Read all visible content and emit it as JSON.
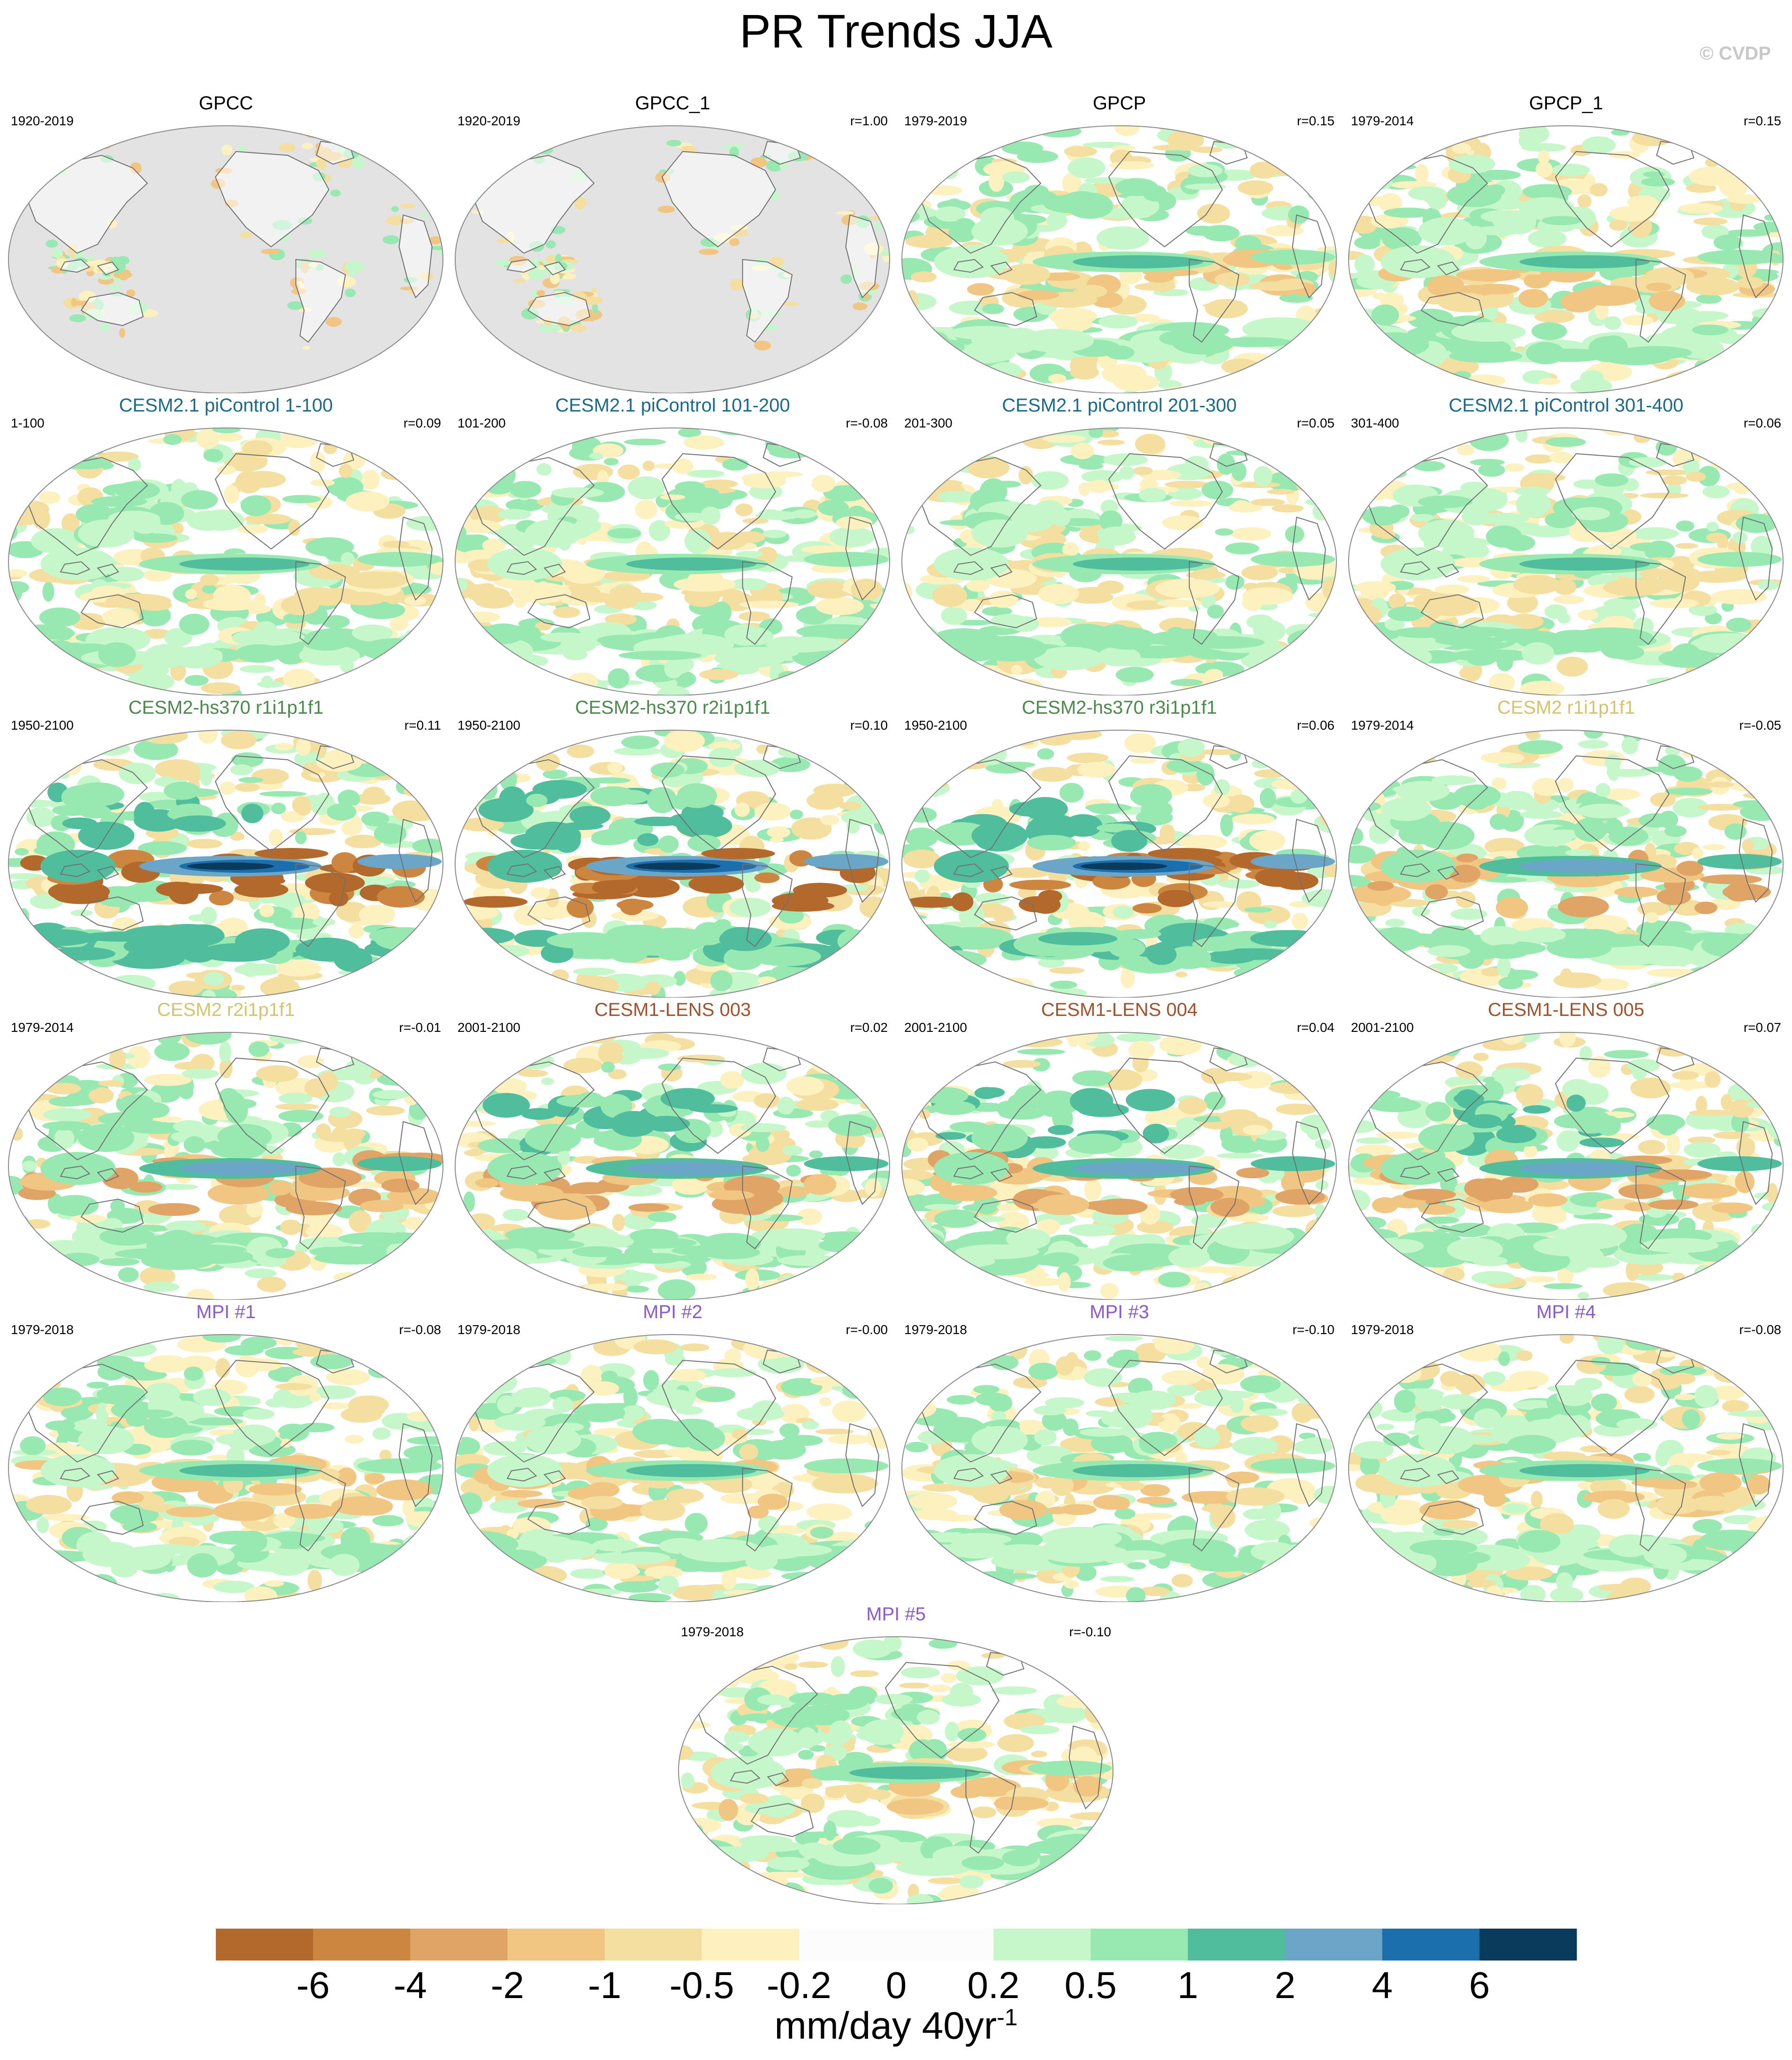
{
  "title": "PR Trends JJA",
  "copyright": "© CVDP",
  "colors": {
    "levels": [
      "#b4692c",
      "#cc8640",
      "#e0a466",
      "#f0c682",
      "#f4dfa0",
      "#fcf1bf",
      "#fcfcfc",
      "#fcfcfc",
      "#c6f7cb",
      "#98e8b2",
      "#50bd9c",
      "#6ba6c9",
      "#1b6fac",
      "#0a3b5c"
    ],
    "land_mask": "#e3e3e3",
    "title_colors": {
      "obs": "#000000",
      "picontrol": "#1a6a8a",
      "hs370": "#4c8a4c",
      "cesm2": "#d4c46c",
      "lens": "#a0522d",
      "mpi": "#8a5ad1"
    }
  },
  "panels": [
    {
      "title": "GPCC",
      "period": "1920-2019",
      "r": "",
      "group": "obs",
      "masked": true
    },
    {
      "title": "GPCC_1",
      "period": "1920-2019",
      "r": "r=1.00",
      "group": "obs",
      "masked": true
    },
    {
      "title": "GPCP",
      "period": "1979-2019",
      "r": "r=0.15",
      "group": "obs",
      "masked": false
    },
    {
      "title": "GPCP_1",
      "period": "1979-2014",
      "r": "r=0.15",
      "group": "obs",
      "masked": false
    },
    {
      "title": "CESM2.1 piControl 1-100",
      "period": "1-100",
      "r": "r=0.09",
      "group": "picontrol",
      "masked": false
    },
    {
      "title": "CESM2.1 piControl 101-200",
      "period": "101-200",
      "r": "r=-0.08",
      "group": "picontrol",
      "masked": false
    },
    {
      "title": "CESM2.1 piControl 201-300",
      "period": "201-300",
      "r": "r=0.05",
      "group": "picontrol",
      "masked": false
    },
    {
      "title": "CESM2.1 piControl 301-400",
      "period": "301-400",
      "r": "r=0.06",
      "group": "picontrol",
      "masked": false
    },
    {
      "title": "CESM2-hs370 r1i1p1f1",
      "period": "1950-2100",
      "r": "r=0.11",
      "group": "hs370",
      "masked": false
    },
    {
      "title": "CESM2-hs370 r2i1p1f1",
      "period": "1950-2100",
      "r": "r=0.10",
      "group": "hs370",
      "masked": false
    },
    {
      "title": "CESM2-hs370 r3i1p1f1",
      "period": "1950-2100",
      "r": "r=0.06",
      "group": "hs370",
      "masked": false
    },
    {
      "title": "CESM2 r1i1p1f1",
      "period": "1979-2014",
      "r": "r=-0.05",
      "group": "cesm2",
      "masked": false
    },
    {
      "title": "CESM2 r2i1p1f1",
      "period": "1979-2014",
      "r": "r=-0.01",
      "group": "cesm2",
      "masked": false
    },
    {
      "title": "CESM1-LENS 003",
      "period": "2001-2100",
      "r": "r=0.02",
      "group": "lens",
      "masked": false
    },
    {
      "title": "CESM1-LENS 004",
      "period": "2001-2100",
      "r": "r=0.04",
      "group": "lens",
      "masked": false
    },
    {
      "title": "CESM1-LENS 005",
      "period": "2001-2100",
      "r": "r=0.07",
      "group": "lens",
      "masked": false
    },
    {
      "title": "MPI #1",
      "period": "1979-2018",
      "r": "r=-0.08",
      "group": "mpi",
      "masked": false
    },
    {
      "title": "MPI #2",
      "period": "1979-2018",
      "r": "r=-0.00",
      "group": "mpi",
      "masked": false
    },
    {
      "title": "MPI #3",
      "period": "1979-2018",
      "r": "r=-0.10",
      "group": "mpi",
      "masked": false
    },
    {
      "title": "MPI #4",
      "period": "1979-2018",
      "r": "r=-0.08",
      "group": "mpi",
      "masked": false
    },
    {
      "title": "MPI #5",
      "period": "1979-2018",
      "r": "r=-0.10",
      "group": "mpi",
      "masked": false
    }
  ],
  "chart_data": {
    "type": "heatmap",
    "title": "PR Trends JJA",
    "colorbar": {
      "tick_labels": [
        "-6",
        "-4",
        "-2",
        "-1",
        "-0.5",
        "-0.2",
        "0",
        "0.2",
        "0.5",
        "1",
        "2",
        "4",
        "6"
      ],
      "units": "mm/day 40yr",
      "units_superscript": "-1"
    }
  }
}
